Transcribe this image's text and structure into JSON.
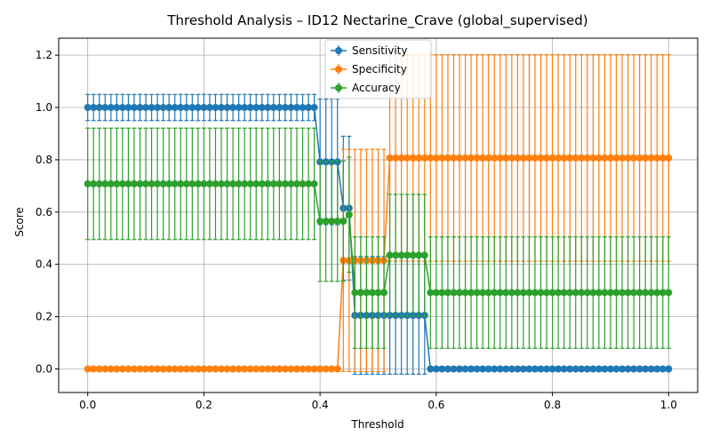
{
  "chart_data": {
    "type": "line",
    "title": "Threshold Analysis – ID12 Nectarine_Crave (global_supervised)",
    "xlabel": "Threshold",
    "ylabel": "Score",
    "xlim": [
      -0.05,
      1.05
    ],
    "ylim": [
      -0.09,
      1.265
    ],
    "xticks": [
      0.0,
      0.2,
      0.4,
      0.6,
      0.8,
      1.0
    ],
    "xtick_labels": [
      "0.0",
      "0.2",
      "0.4",
      "0.6",
      "0.8",
      "1.0"
    ],
    "yticks": [
      0.0,
      0.2,
      0.4,
      0.6,
      0.8,
      1.0,
      1.2
    ],
    "ytick_labels": [
      "0.0",
      "0.2",
      "0.4",
      "0.6",
      "0.8",
      "1.0",
      "1.2"
    ],
    "grid": true,
    "legend_position": "top-center",
    "x": {
      "start": 0.0,
      "stop": 1.0,
      "count": 101
    },
    "series": [
      {
        "name": "Sensitivity",
        "color": "#1f77b4",
        "segments": [
          {
            "x_from": 0.0,
            "x_to": 0.39,
            "value": 1.0,
            "error": 0.05
          },
          {
            "x_from": 0.4,
            "x_to": 0.43,
            "value": 0.792,
            "error": 0.24
          },
          {
            "x_from": 0.44,
            "x_to": 0.45,
            "value": 0.615,
            "error": 0.275
          },
          {
            "x_from": 0.46,
            "x_to": 0.58,
            "value": 0.205,
            "error": 0.225
          },
          {
            "x_from": 0.59,
            "x_to": 1.0,
            "value": 0.0,
            "error": 0.0
          }
        ]
      },
      {
        "name": "Specificity",
        "color": "#ff7f0e",
        "segments": [
          {
            "x_from": 0.0,
            "x_to": 0.43,
            "value": 0.0,
            "error": 0.0
          },
          {
            "x_from": 0.44,
            "x_to": 0.51,
            "value": 0.415,
            "error": 0.425
          },
          {
            "x_from": 0.52,
            "x_to": 1.0,
            "value": 0.807,
            "error": 0.395
          }
        ]
      },
      {
        "name": "Accuracy",
        "color": "#2ca02c",
        "segments": [
          {
            "x_from": 0.0,
            "x_to": 0.39,
            "value": 0.708,
            "error": 0.213
          },
          {
            "x_from": 0.4,
            "x_to": 0.44,
            "value": 0.565,
            "error": 0.23
          },
          {
            "x_from": 0.45,
            "x_to": 0.45,
            "value": 0.59,
            "error": 0.22
          },
          {
            "x_from": 0.46,
            "x_to": 0.51,
            "value": 0.292,
            "error": 0.213
          },
          {
            "x_from": 0.52,
            "x_to": 0.58,
            "value": 0.435,
            "error": 0.233
          },
          {
            "x_from": 0.59,
            "x_to": 1.0,
            "value": 0.292,
            "error": 0.213
          }
        ]
      }
    ]
  }
}
